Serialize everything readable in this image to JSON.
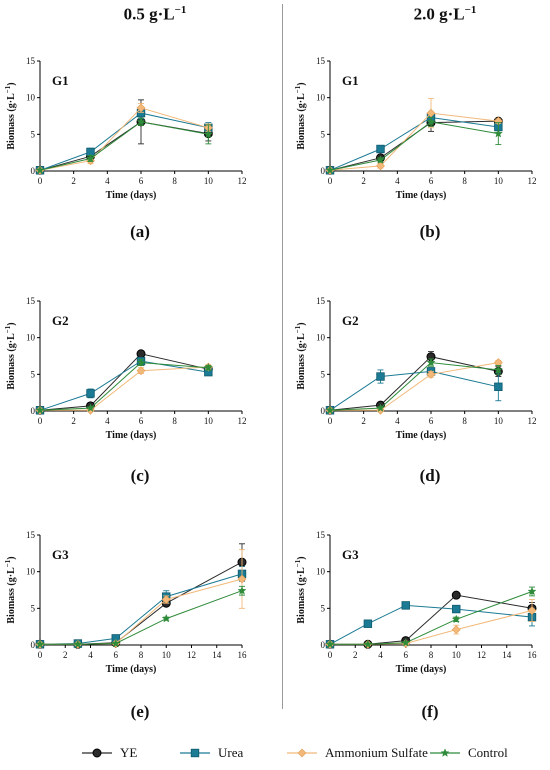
{
  "columns": {
    "left": "0.5 g·L",
    "right": "2.0 g·L",
    "unit_sup": "−1"
  },
  "legend": [
    {
      "name": "YE",
      "color": "#2b2b2b",
      "marker": "circle"
    },
    {
      "name": "Urea",
      "color": "#1b7a94",
      "marker": "square"
    },
    {
      "name": "Ammonium Sulfate",
      "color": "#f2b97a",
      "marker": "diamond"
    },
    {
      "name": "Control",
      "color": "#2e8b3a",
      "marker": "star"
    }
  ],
  "chart_data": [
    {
      "type": "line",
      "panel": "(a)",
      "group_label": "G1",
      "xlabel": "Time (days)",
      "ylabel": "Biomass (g·L",
      "ylabel_sup": "−1",
      "ylabel_end": ")",
      "xlim": [
        0,
        12
      ],
      "ylim": [
        0,
        15
      ],
      "xticks": [
        0,
        2,
        4,
        6,
        8,
        10,
        12
      ],
      "yticks": [
        0,
        5,
        10,
        15
      ],
      "series": [
        {
          "name": "YE",
          "x": [
            0,
            3,
            6,
            10
          ],
          "y": [
            0.1,
            2.0,
            6.7,
            5.1
          ],
          "err": [
            0.1,
            0.6,
            3.0,
            1.0
          ]
        },
        {
          "name": "Urea",
          "x": [
            0,
            3,
            6,
            10
          ],
          "y": [
            0.1,
            2.6,
            7.9,
            5.9
          ],
          "err": [
            0.1,
            0.5,
            0.8,
            0.7
          ]
        },
        {
          "name": "Ammonium Sulfate",
          "x": [
            0,
            3,
            6,
            10
          ],
          "y": [
            0.1,
            1.4,
            8.6,
            5.9
          ],
          "err": [
            0.1,
            0.4,
            0.6,
            0.5
          ]
        },
        {
          "name": "Control",
          "x": [
            0,
            3,
            6,
            10
          ],
          "y": [
            0.1,
            1.7,
            6.7,
            5.0
          ],
          "err": [
            0.1,
            0.4,
            0.5,
            1.3
          ]
        }
      ]
    },
    {
      "type": "line",
      "panel": "(b)",
      "group_label": "G1",
      "xlabel": "Time (days)",
      "ylabel": "Biomass (g·L",
      "ylabel_sup": "−1",
      "ylabel_end": ")",
      "xlim": [
        0,
        12
      ],
      "ylim": [
        0,
        15
      ],
      "xticks": [
        0,
        2,
        4,
        6,
        8,
        10,
        12
      ],
      "yticks": [
        0,
        5,
        10,
        15
      ],
      "series": [
        {
          "name": "YE",
          "x": [
            0,
            3,
            6,
            10
          ],
          "y": [
            0.1,
            1.8,
            6.6,
            6.8
          ],
          "err": [
            0.1,
            0.3,
            1.2,
            0.3
          ]
        },
        {
          "name": "Urea",
          "x": [
            0,
            3,
            6,
            10
          ],
          "y": [
            0.1,
            3.0,
            7.3,
            6.0
          ],
          "err": [
            0.1,
            0.3,
            0.6,
            0.4
          ]
        },
        {
          "name": "Ammonium Sulfate",
          "x": [
            0,
            3,
            6,
            10
          ],
          "y": [
            0.1,
            0.7,
            7.9,
            6.8
          ],
          "err": [
            0.1,
            0.3,
            2.0,
            0.3
          ]
        },
        {
          "name": "Control",
          "x": [
            0,
            3,
            6,
            10
          ],
          "y": [
            0.1,
            1.5,
            6.7,
            5.1
          ],
          "err": [
            0.1,
            0.3,
            0.6,
            1.5
          ]
        }
      ]
    },
    {
      "type": "line",
      "panel": "(c)",
      "group_label": "G2",
      "xlabel": "Time (days)",
      "ylabel": "Biomass (g·L",
      "ylabel_sup": "−1",
      "ylabel_end": ")",
      "xlim": [
        0,
        12
      ],
      "ylim": [
        0,
        15
      ],
      "xticks": [
        0,
        2,
        4,
        6,
        8,
        10,
        12
      ],
      "yticks": [
        0,
        5,
        10,
        15
      ],
      "series": [
        {
          "name": "YE",
          "x": [
            0,
            3,
            6,
            10
          ],
          "y": [
            0.1,
            0.7,
            7.8,
            5.7
          ],
          "err": [
            0.1,
            0.1,
            0.2,
            0.2
          ]
        },
        {
          "name": "Urea",
          "x": [
            0,
            3,
            6,
            10
          ],
          "y": [
            0.1,
            2.4,
            6.8,
            5.3
          ],
          "err": [
            0.1,
            0.6,
            0.4,
            0.3
          ]
        },
        {
          "name": "Ammonium Sulfate",
          "x": [
            0,
            3,
            6,
            10
          ],
          "y": [
            0.1,
            0.1,
            5.5,
            6.0
          ],
          "err": [
            0.1,
            0.1,
            0.4,
            0.3
          ]
        },
        {
          "name": "Control",
          "x": [
            0,
            3,
            6,
            10
          ],
          "y": [
            0.1,
            0.4,
            6.6,
            5.9
          ],
          "err": [
            0.1,
            0.1,
            0.4,
            0.3
          ]
        }
      ]
    },
    {
      "type": "line",
      "panel": "(d)",
      "group_label": "G2",
      "xlabel": "Time (days)",
      "ylabel": "Biomass (g·L",
      "ylabel_sup": "−1",
      "ylabel_end": ")",
      "xlim": [
        0,
        12
      ],
      "ylim": [
        0,
        15
      ],
      "xticks": [
        0,
        2,
        4,
        6,
        8,
        10,
        12
      ],
      "yticks": [
        0,
        5,
        10,
        15
      ],
      "series": [
        {
          "name": "YE",
          "x": [
            0,
            3,
            6,
            10
          ],
          "y": [
            0.1,
            0.8,
            7.4,
            5.4
          ],
          "err": [
            0.1,
            0.3,
            0.7,
            0.7
          ]
        },
        {
          "name": "Urea",
          "x": [
            0,
            3,
            6,
            10
          ],
          "y": [
            0.1,
            4.7,
            5.4,
            3.3
          ],
          "err": [
            0.1,
            0.9,
            0.5,
            1.9
          ]
        },
        {
          "name": "Ammonium Sulfate",
          "x": [
            0,
            3,
            6,
            10
          ],
          "y": [
            0.1,
            0.1,
            5.0,
            6.6
          ],
          "err": [
            0.1,
            0.1,
            0.4,
            0.3
          ]
        },
        {
          "name": "Control",
          "x": [
            0,
            3,
            6,
            10
          ],
          "y": [
            0.1,
            0.4,
            6.6,
            5.6
          ],
          "err": [
            0.1,
            0.1,
            0.5,
            0.6
          ]
        }
      ]
    },
    {
      "type": "line",
      "panel": "(e)",
      "group_label": "G3",
      "xlabel": "Time (days)",
      "ylabel": "Biomass (g·L",
      "ylabel_sup": "−1",
      "ylabel_end": ")",
      "xlim": [
        0,
        16
      ],
      "ylim": [
        0,
        15
      ],
      "xticks": [
        0,
        2,
        4,
        6,
        8,
        10,
        12,
        14,
        16
      ],
      "yticks": [
        0,
        5,
        10,
        15
      ],
      "series": [
        {
          "name": "YE",
          "x": [
            0,
            3,
            6,
            10,
            16
          ],
          "y": [
            0.1,
            0.1,
            0.3,
            5.7,
            11.3
          ],
          "err": [
            0.1,
            0.1,
            0.1,
            0.4,
            2.5
          ]
        },
        {
          "name": "Urea",
          "x": [
            0,
            3,
            6,
            10,
            16
          ],
          "y": [
            0.1,
            0.2,
            0.9,
            6.6,
            9.7
          ],
          "err": [
            0.1,
            0.1,
            0.3,
            0.8,
            1.0
          ]
        },
        {
          "name": "Ammonium Sulfate",
          "x": [
            0,
            3,
            6,
            10,
            16
          ],
          "y": [
            0.1,
            0.1,
            0.2,
            6.2,
            9.0
          ],
          "err": [
            0.1,
            0.1,
            0.1,
            0.5,
            4.0
          ]
        },
        {
          "name": "Control",
          "x": [
            0,
            3,
            6,
            10,
            16
          ],
          "y": [
            0.1,
            0.1,
            0.2,
            3.6,
            7.4
          ],
          "err": [
            0.1,
            0.1,
            0.1,
            0.2,
            0.6
          ]
        }
      ]
    },
    {
      "type": "line",
      "panel": "(f)",
      "group_label": "G3",
      "xlabel": "Time (days)",
      "ylabel": "Biomass (g·L",
      "ylabel_sup": "−1",
      "ylabel_end": ")",
      "xlim": [
        0,
        16
      ],
      "ylim": [
        0,
        15
      ],
      "xticks": [
        0,
        2,
        4,
        6,
        8,
        10,
        12,
        14,
        16
      ],
      "yticks": [
        0,
        5,
        10,
        15
      ],
      "series": [
        {
          "name": "YE",
          "x": [
            0,
            3,
            6,
            10,
            16
          ],
          "y": [
            0.1,
            0.1,
            0.6,
            6.8,
            5.0
          ],
          "err": [
            0.1,
            0.1,
            0.2,
            0.3,
            0.8
          ]
        },
        {
          "name": "Urea",
          "x": [
            0,
            3,
            6,
            10,
            16
          ],
          "y": [
            0.1,
            2.9,
            5.4,
            4.9,
            3.8
          ],
          "err": [
            0.1,
            0.3,
            0.3,
            0.3,
            1.2
          ]
        },
        {
          "name": "Ammonium Sulfate",
          "x": [
            0,
            3,
            6,
            10,
            16
          ],
          "y": [
            0.1,
            0.1,
            0.2,
            2.1,
            4.7
          ],
          "err": [
            0.1,
            0.1,
            0.1,
            0.6,
            1.5
          ]
        },
        {
          "name": "Control",
          "x": [
            0,
            3,
            6,
            10,
            16
          ],
          "y": [
            0.1,
            0.1,
            0.3,
            3.5,
            7.3
          ],
          "err": [
            0.1,
            0.1,
            0.1,
            0.3,
            0.6
          ]
        }
      ]
    }
  ]
}
